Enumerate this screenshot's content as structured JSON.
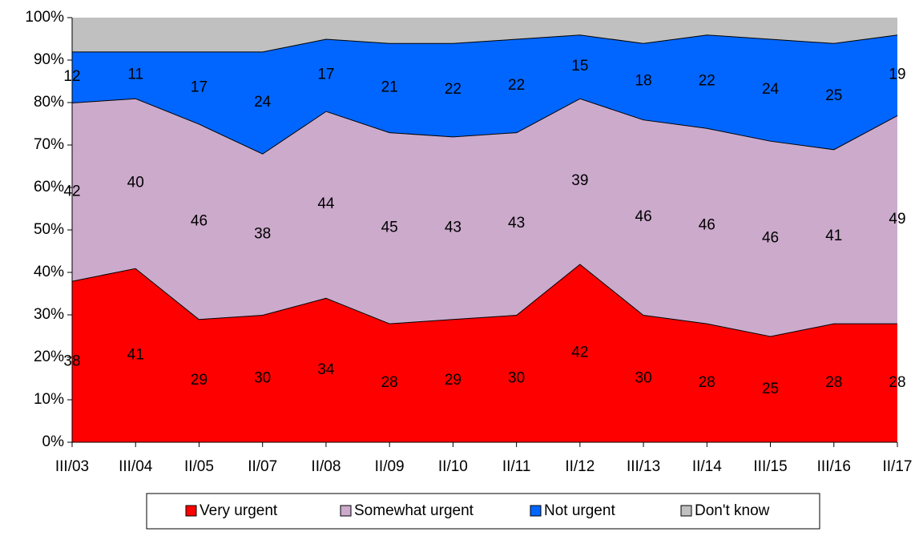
{
  "chart_data": {
    "type": "stacked_area",
    "categories": [
      "III/03",
      "III/04",
      "II/05",
      "II/07",
      "II/08",
      "II/09",
      "II/10",
      "II/11",
      "II/12",
      "III/13",
      "II/14",
      "III/15",
      "III/16",
      "II/17"
    ],
    "series": [
      {
        "name": "Very urgent",
        "color": "#ff0000",
        "data_labels": true,
        "values": [
          38,
          41,
          29,
          30,
          34,
          28,
          29,
          30,
          42,
          30,
          28,
          25,
          28,
          28
        ]
      },
      {
        "name": "Somewhat urgent",
        "color": "#ccaacc",
        "data_labels": true,
        "values": [
          42,
          40,
          46,
          38,
          44,
          45,
          43,
          43,
          39,
          46,
          46,
          46,
          41,
          49
        ]
      },
      {
        "name": "Not urgent",
        "color": "#0066ff",
        "data_labels": true,
        "values": [
          12,
          11,
          17,
          24,
          17,
          21,
          22,
          22,
          15,
          18,
          22,
          24,
          25,
          19
        ]
      },
      {
        "name": "Don't know",
        "color": "#c0c0c0",
        "data_labels": false,
        "values": [
          8,
          8,
          8,
          8,
          5,
          6,
          6,
          5,
          4,
          6,
          4,
          5,
          6,
          4
        ]
      }
    ],
    "ylim": [
      0,
      100
    ],
    "yticks": [
      {
        "value": 0,
        "label": "0%"
      },
      {
        "value": 10,
        "label": "10%"
      },
      {
        "value": 20,
        "label": "20%"
      },
      {
        "value": 30,
        "label": "30%"
      },
      {
        "value": 40,
        "label": "40%"
      },
      {
        "value": 50,
        "label": "50%"
      },
      {
        "value": 60,
        "label": "60%"
      },
      {
        "value": 70,
        "label": "70%"
      },
      {
        "value": 80,
        "label": "80%"
      },
      {
        "value": 90,
        "label": "90%"
      },
      {
        "value": 100,
        "label": "100%"
      }
    ],
    "legend": "bottom"
  }
}
